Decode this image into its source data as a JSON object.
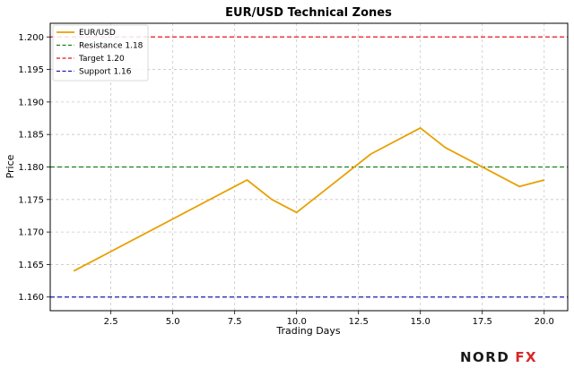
{
  "chart_data": {
    "type": "line",
    "title": "EUR/USD Technical Zones",
    "xlabel": "Trading Days",
    "ylabel": "Price",
    "xlim": [
      0.05,
      20.95
    ],
    "ylim": [
      1.1579,
      1.2021
    ],
    "xticks": [
      2.5,
      5.0,
      7.5,
      10.0,
      12.5,
      15.0,
      17.5,
      20.0
    ],
    "xtick_labels": [
      "2.5",
      "5.0",
      "7.5",
      "10.0",
      "12.5",
      "15.0",
      "17.5",
      "20.0"
    ],
    "yticks": [
      1.16,
      1.165,
      1.17,
      1.175,
      1.18,
      1.185,
      1.19,
      1.195,
      1.2
    ],
    "ytick_labels": [
      "1.160",
      "1.165",
      "1.170",
      "1.175",
      "1.180",
      "1.185",
      "1.190",
      "1.195",
      "1.200"
    ],
    "grid": true,
    "legend_position": "top-left",
    "series": [
      {
        "name": "EUR/USD",
        "color": "#e8a000",
        "x": [
          1,
          8,
          9,
          10,
          13,
          15,
          16,
          17,
          19,
          20
        ],
        "y": [
          1.164,
          1.178,
          1.175,
          1.173,
          1.182,
          1.186,
          1.183,
          1.181,
          1.177,
          1.178
        ]
      }
    ],
    "hlines": [
      {
        "name": "Resistance 1.18",
        "y": 1.18,
        "color": "#1a7f1a",
        "style": "dashed"
      },
      {
        "name": "Target 1.20",
        "y": 1.2,
        "color": "#e8141e",
        "style": "dashed"
      },
      {
        "name": "Support 1.16",
        "y": 1.16,
        "color": "#1a1ab0",
        "style": "dashed"
      }
    ]
  },
  "logo": {
    "text_part1": "NORD",
    "text_part2": "FX",
    "color_part1": "#1a1a1a",
    "color_part2": "#d62828"
  }
}
